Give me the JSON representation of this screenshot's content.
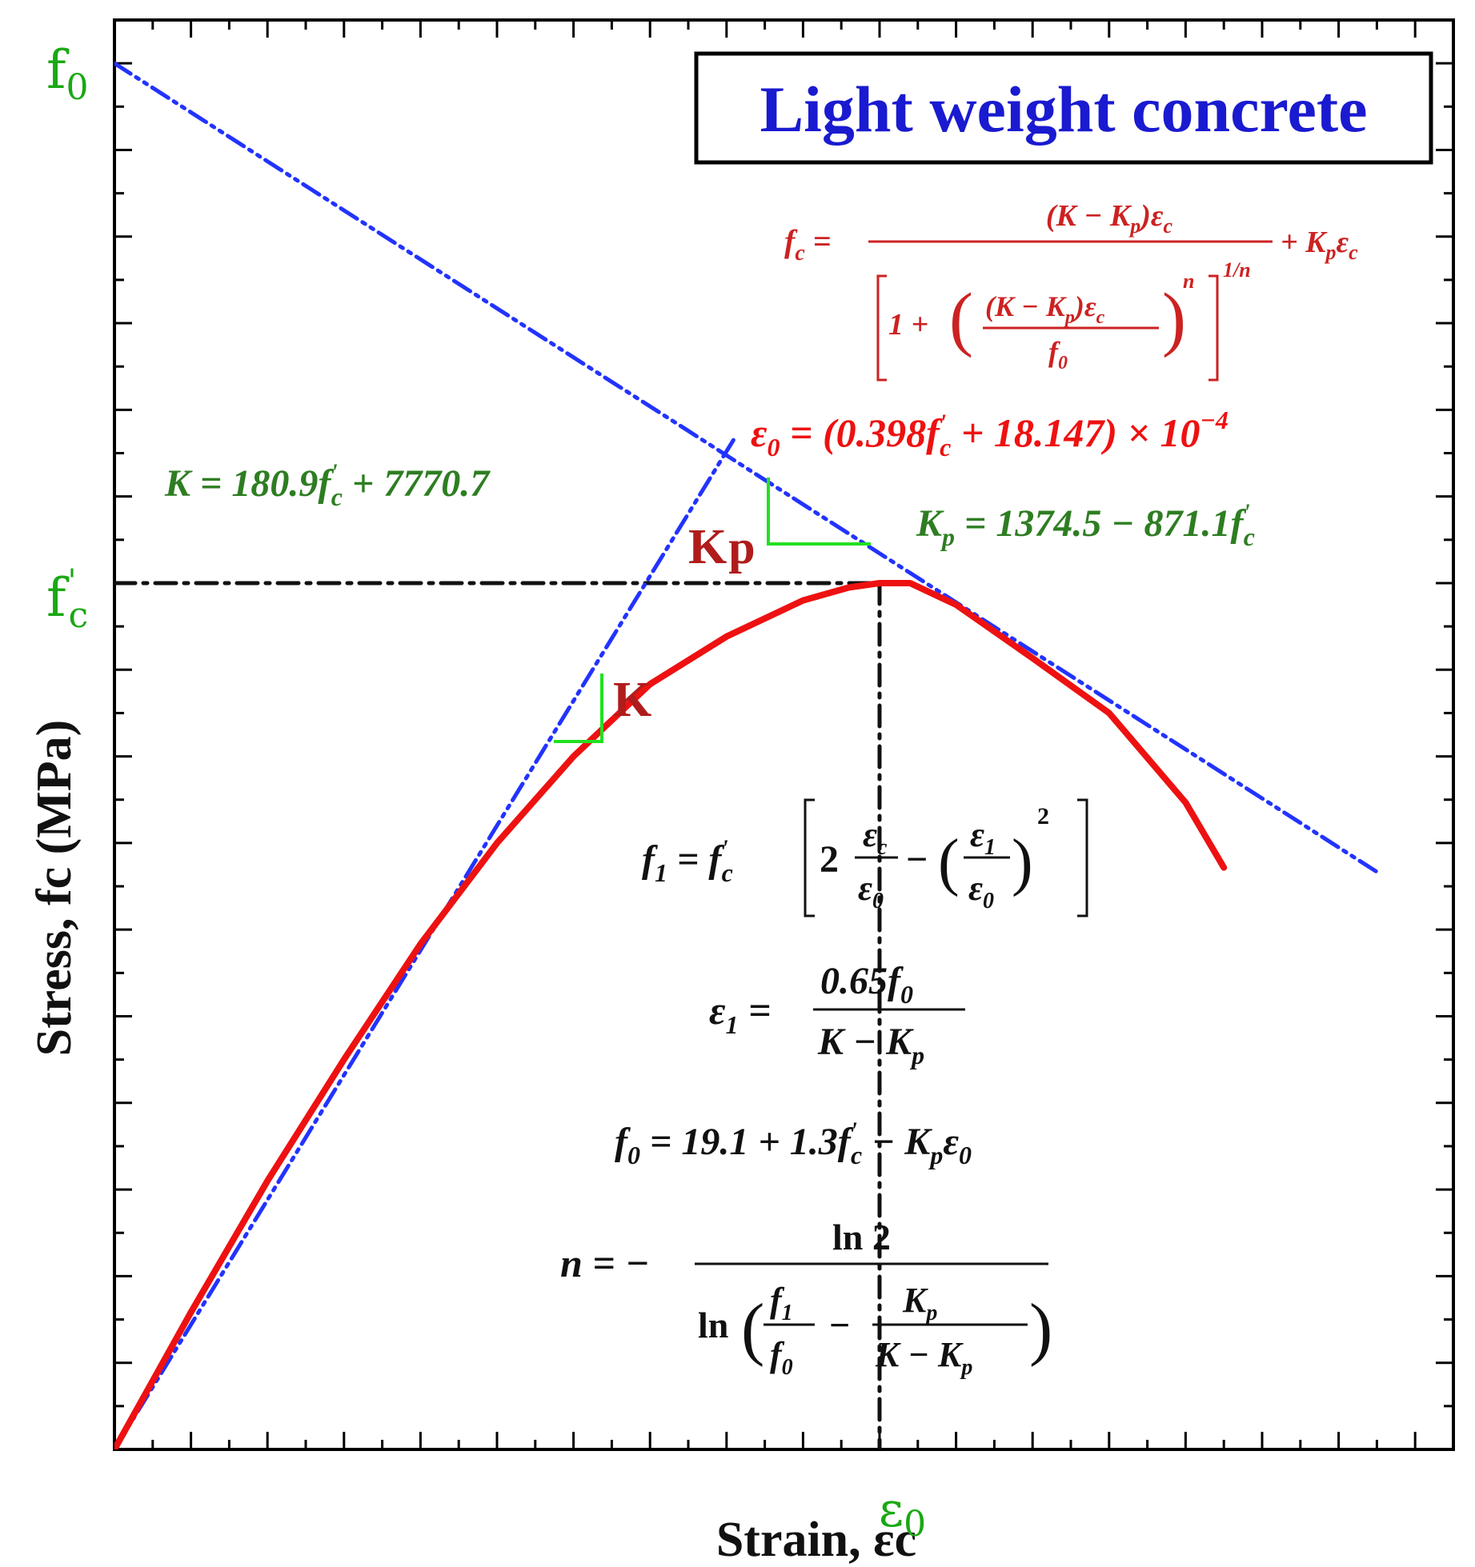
{
  "chart_data": {
    "type": "line",
    "title": "Light weight concrete",
    "xlabel": "Strain, εc",
    "ylabel": "Stress, fc (MPa)",
    "xlim": [
      0,
      17.5
    ],
    "ylim": [
      0,
      9.9
    ],
    "grid": false,
    "axis_marks": {
      "f0": "f0",
      "fc_prime": "f'c",
      "eps0": "ε0"
    },
    "key_points": {
      "eps0": 10,
      "fc_prime": 6,
      "f0": 9.6
    },
    "series": [
      {
        "id": "experimental-curve",
        "color": "#ee1111",
        "style": "solid",
        "x": [
          0,
          1,
          2,
          3,
          4,
          5,
          6,
          7,
          8,
          9,
          9.6,
          10,
          10.4,
          11,
          12,
          13,
          14,
          14.5
        ],
        "y": [
          0,
          0.95,
          1.86,
          2.7,
          3.5,
          4.2,
          4.8,
          5.3,
          5.63,
          5.88,
          5.97,
          6.0,
          6.0,
          5.85,
          5.48,
          5.1,
          4.48,
          4.03
        ]
      },
      {
        "id": "initial-tangent",
        "color": "#2233ff",
        "style": "dash-dot-dot",
        "x": [
          0,
          8.1
        ],
        "y": [
          0,
          7.0
        ]
      },
      {
        "id": "post-peak-asymptote",
        "color": "#2233ff",
        "style": "dash-dot-dot",
        "x": [
          0,
          16.5
        ],
        "y": [
          9.6,
          4.0
        ]
      },
      {
        "id": "fc-reference-line",
        "color": "#111111",
        "style": "dash-dot",
        "x": [
          0,
          10
        ],
        "y": [
          6.0,
          6.0
        ]
      },
      {
        "id": "eps0-reference-line",
        "color": "#111111",
        "style": "dash-dot",
        "x": [
          10,
          10
        ],
        "y": [
          6.0,
          0
        ]
      }
    ],
    "slope_labels": {
      "K": "K",
      "Kp": "Kp"
    },
    "equations": {
      "fc_model": "fc = (K − Kp)εc / [1 + ((K − Kp)εc / f0)^n]^(1/n) + Kp εc",
      "eps0": "ε0 = (0.398f'c + 18.147) × 10⁻⁴",
      "K": "K = 180.9f'c + 7770.7",
      "Kp": "Kp = 1374.5 − 871.1f'c",
      "f1": "f1 = f'c [2 εc/ε0 − (ε1/ε0)²]",
      "eps1": "ε1 = 0.65f0 / (K − Kp)",
      "f0": "f0 = 19.1 + 1.3f'c − Kp ε0",
      "n": "n = − ln 2 / ln(f1/f0 − Kp/(K − Kp))"
    },
    "colors": {
      "curve": "#ee1111",
      "asymptote": "#2233ff",
      "reference": "#111111",
      "title": "#1a1ad0",
      "equation_red": "#cc2222",
      "equation_green": "#2e7d22",
      "axis_mark": "#1aa814",
      "slope_label": "#b01c1c",
      "slope_triangle": "#22e022"
    }
  }
}
